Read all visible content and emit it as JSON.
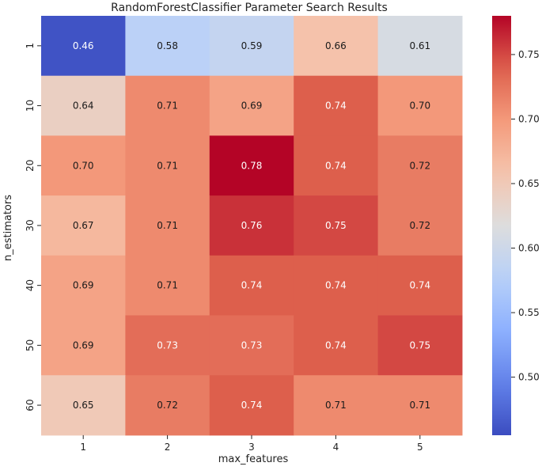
{
  "chart_data": {
    "type": "heatmap",
    "title": "RandomForestClassifier Parameter Search Results",
    "xlabel": "max_features",
    "ylabel": "n_estimators",
    "x_categories": [
      "1",
      "2",
      "3",
      "4",
      "5"
    ],
    "y_categories": [
      "1",
      "10",
      "20",
      "30",
      "40",
      "50",
      "60"
    ],
    "values": [
      [
        0.46,
        0.58,
        0.59,
        0.66,
        0.61
      ],
      [
        0.64,
        0.71,
        0.69,
        0.74,
        0.7
      ],
      [
        0.7,
        0.71,
        0.78,
        0.74,
        0.72
      ],
      [
        0.67,
        0.71,
        0.76,
        0.75,
        0.72
      ],
      [
        0.69,
        0.71,
        0.74,
        0.74,
        0.74
      ],
      [
        0.69,
        0.73,
        0.73,
        0.74,
        0.75
      ],
      [
        0.65,
        0.72,
        0.74,
        0.71,
        0.71
      ]
    ],
    "cell_labels": [
      [
        "0.46",
        "0.58",
        "0.59",
        "0.66",
        "0.61"
      ],
      [
        "0.64",
        "0.71",
        "0.69",
        "0.74",
        "0.70"
      ],
      [
        "0.70",
        "0.71",
        "0.78",
        "0.74",
        "0.72"
      ],
      [
        "0.67",
        "0.71",
        "0.76",
        "0.75",
        "0.72"
      ],
      [
        "0.69",
        "0.71",
        "0.74",
        "0.74",
        "0.74"
      ],
      [
        "0.69",
        "0.73",
        "0.73",
        "0.74",
        "0.75"
      ],
      [
        "0.65",
        "0.72",
        "0.74",
        "0.71",
        "0.71"
      ]
    ],
    "colormap": "coolwarm",
    "vmin": 0.455,
    "vmax": 0.78,
    "colorbar_ticks": [
      0.5,
      0.55,
      0.6,
      0.65,
      0.7,
      0.75
    ],
    "colorbar_tick_labels": [
      "0.50",
      "0.55",
      "0.60",
      "0.65",
      "0.70",
      "0.75"
    ]
  }
}
